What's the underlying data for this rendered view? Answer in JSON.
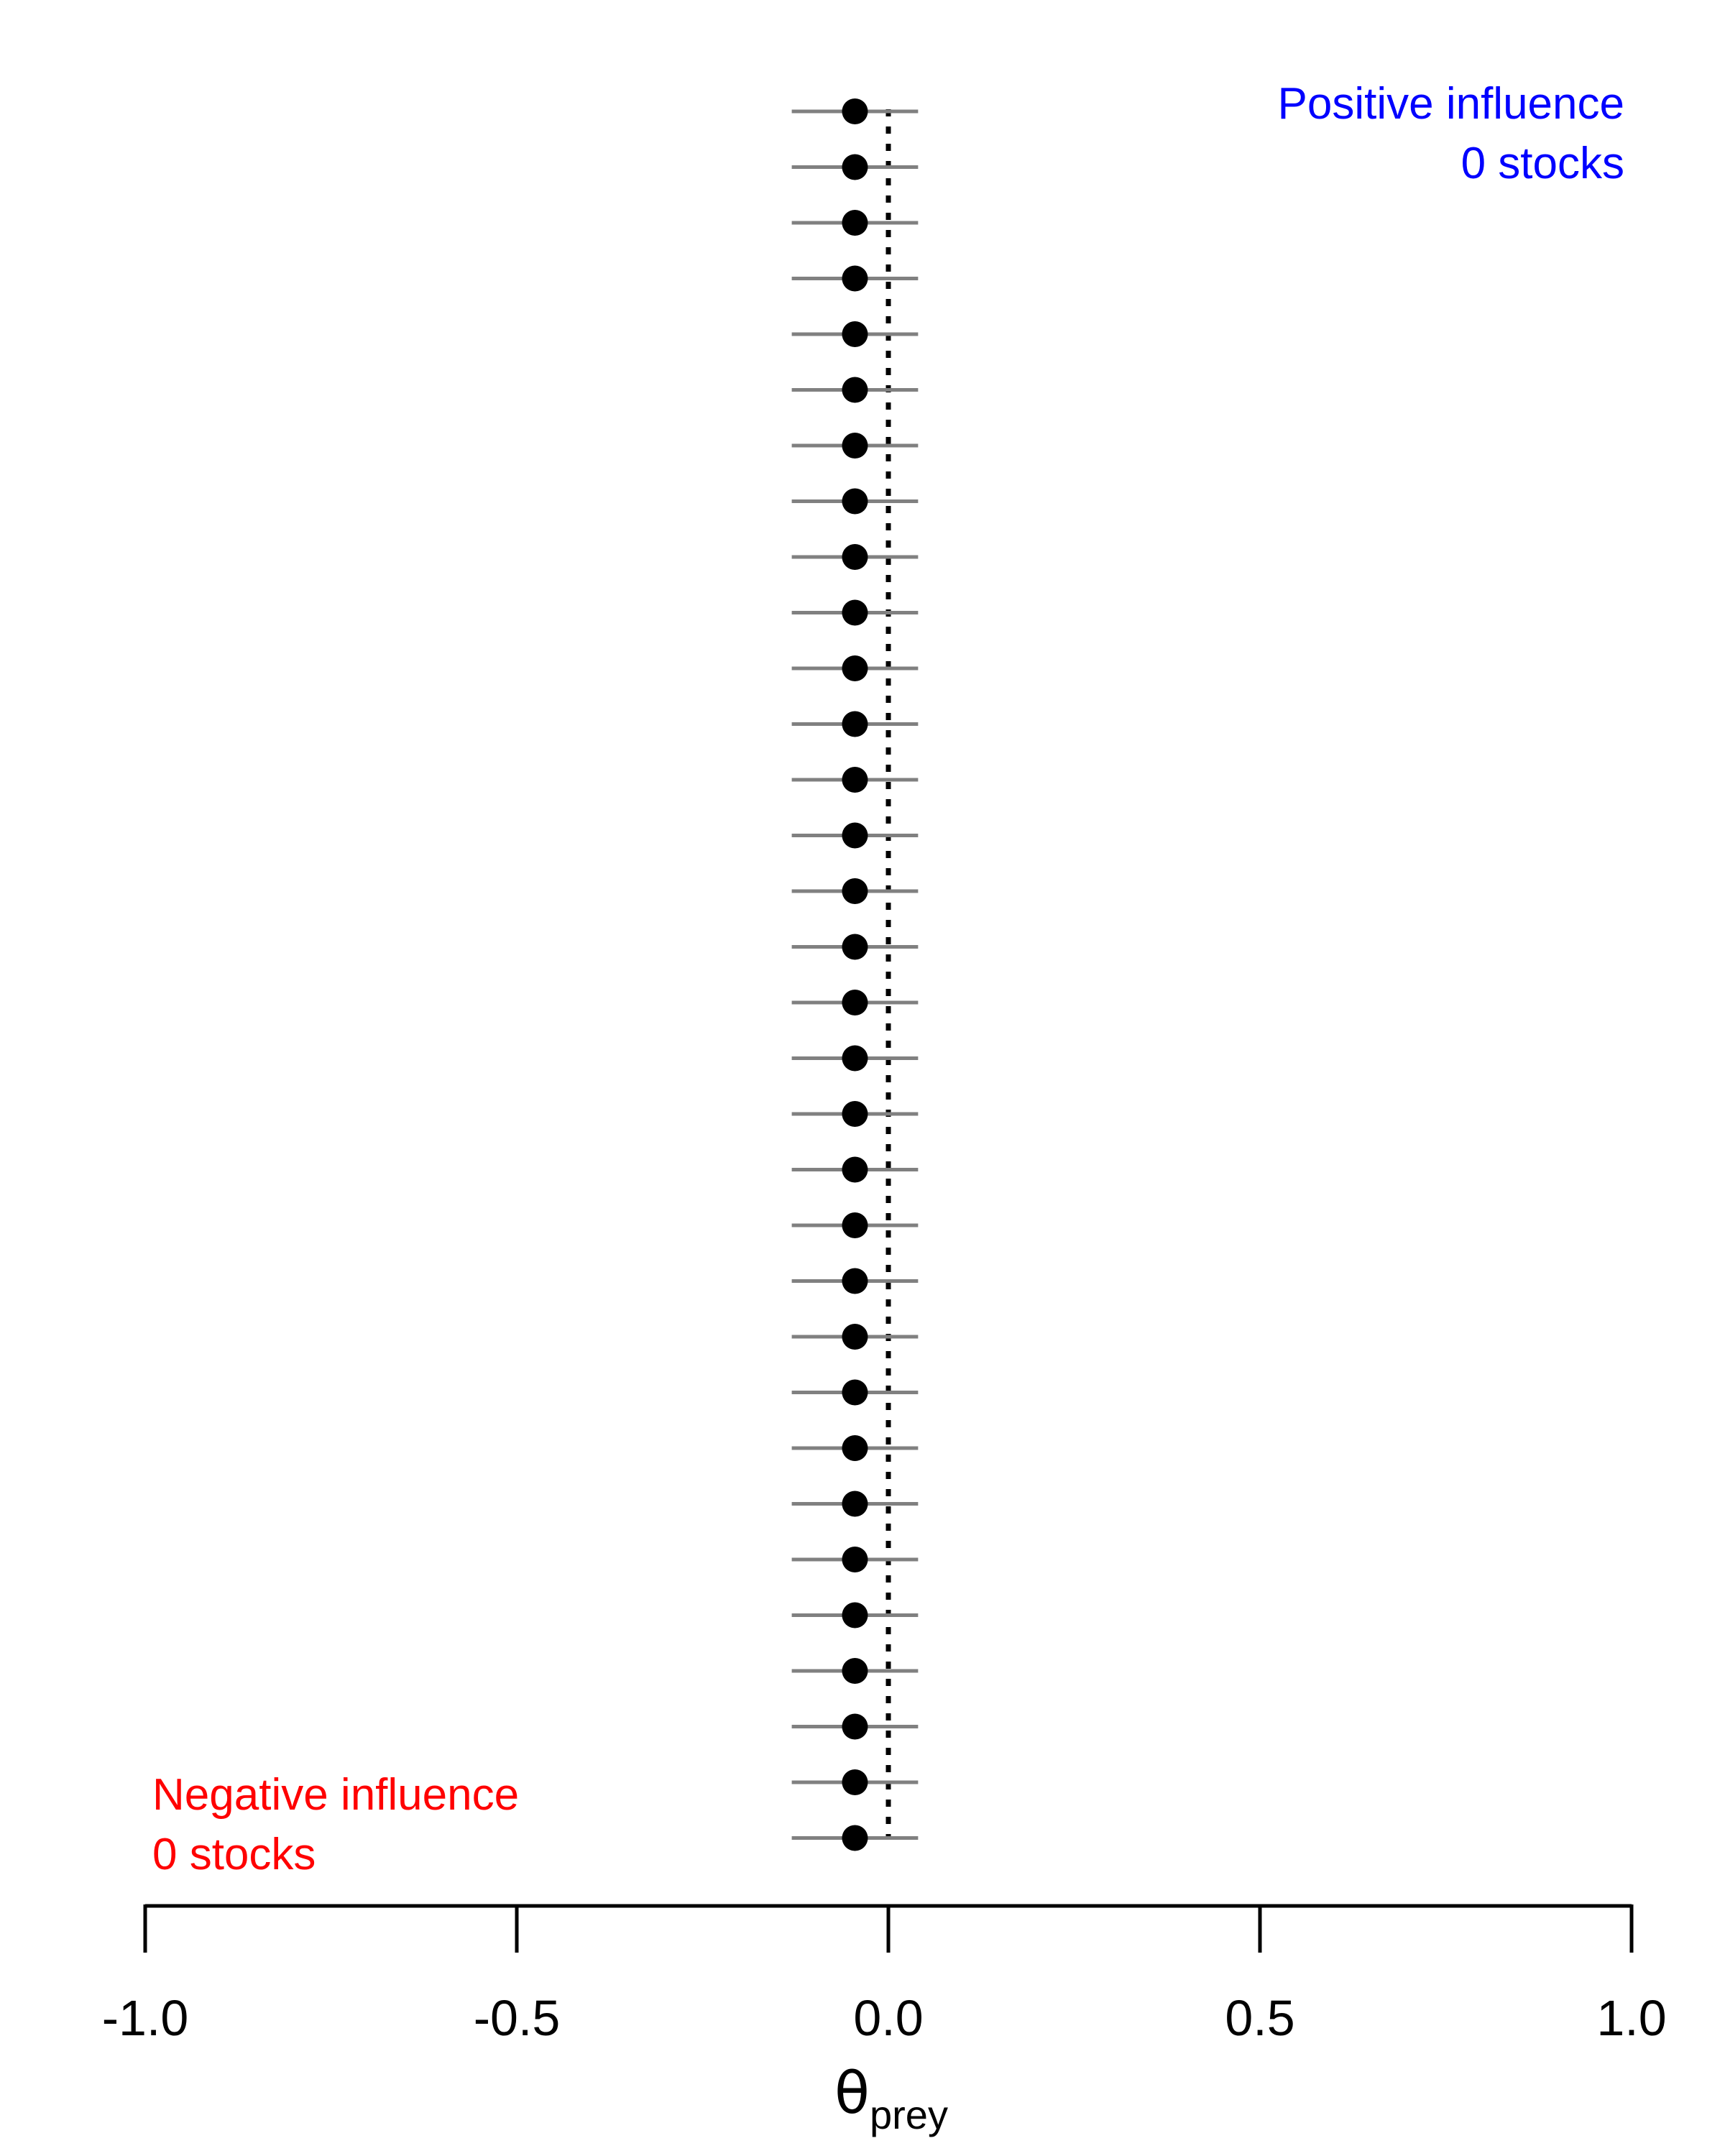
{
  "annotations": {
    "positive": {
      "line1": "Positive influence",
      "line2": "0 stocks",
      "color": "#0000ff"
    },
    "negative": {
      "line1": "Negative influence",
      "line2": "0 stocks",
      "color": "#ff0000"
    }
  },
  "chart_data": {
    "type": "scatter",
    "subtype": "forest-plot (point estimates with horizontal intervals)",
    "xlabel": "θ",
    "xlabel_subscript": "prey",
    "ylabel": "",
    "title": "",
    "xlim": [
      -1.0,
      1.0
    ],
    "xticks": [
      -1.0,
      -0.5,
      0.0,
      0.5,
      1.0
    ],
    "xtick_labels": [
      "-1.0",
      "-0.5",
      "0.0",
      "0.5",
      "1.0"
    ],
    "reference_line": {
      "x": 0.0,
      "style": "dotted",
      "color": "#000000"
    },
    "grid": false,
    "interval_color": "#808080",
    "point_color": "#000000",
    "points": [
      {
        "row": 1,
        "estimate": -0.045,
        "lower": -0.13,
        "upper": 0.04
      },
      {
        "row": 2,
        "estimate": -0.045,
        "lower": -0.13,
        "upper": 0.04
      },
      {
        "row": 3,
        "estimate": -0.045,
        "lower": -0.13,
        "upper": 0.04
      },
      {
        "row": 4,
        "estimate": -0.045,
        "lower": -0.13,
        "upper": 0.04
      },
      {
        "row": 5,
        "estimate": -0.045,
        "lower": -0.13,
        "upper": 0.04
      },
      {
        "row": 6,
        "estimate": -0.045,
        "lower": -0.13,
        "upper": 0.04
      },
      {
        "row": 7,
        "estimate": -0.045,
        "lower": -0.13,
        "upper": 0.04
      },
      {
        "row": 8,
        "estimate": -0.045,
        "lower": -0.13,
        "upper": 0.04
      },
      {
        "row": 9,
        "estimate": -0.045,
        "lower": -0.13,
        "upper": 0.04
      },
      {
        "row": 10,
        "estimate": -0.045,
        "lower": -0.13,
        "upper": 0.04
      },
      {
        "row": 11,
        "estimate": -0.045,
        "lower": -0.13,
        "upper": 0.04
      },
      {
        "row": 12,
        "estimate": -0.045,
        "lower": -0.13,
        "upper": 0.04
      },
      {
        "row": 13,
        "estimate": -0.045,
        "lower": -0.13,
        "upper": 0.04
      },
      {
        "row": 14,
        "estimate": -0.045,
        "lower": -0.13,
        "upper": 0.04
      },
      {
        "row": 15,
        "estimate": -0.045,
        "lower": -0.13,
        "upper": 0.04
      },
      {
        "row": 16,
        "estimate": -0.045,
        "lower": -0.13,
        "upper": 0.04
      },
      {
        "row": 17,
        "estimate": -0.045,
        "lower": -0.13,
        "upper": 0.04
      },
      {
        "row": 18,
        "estimate": -0.045,
        "lower": -0.13,
        "upper": 0.04
      },
      {
        "row": 19,
        "estimate": -0.045,
        "lower": -0.13,
        "upper": 0.04
      },
      {
        "row": 20,
        "estimate": -0.045,
        "lower": -0.13,
        "upper": 0.04
      },
      {
        "row": 21,
        "estimate": -0.045,
        "lower": -0.13,
        "upper": 0.04
      },
      {
        "row": 22,
        "estimate": -0.045,
        "lower": -0.13,
        "upper": 0.04
      },
      {
        "row": 23,
        "estimate": -0.045,
        "lower": -0.13,
        "upper": 0.04
      },
      {
        "row": 24,
        "estimate": -0.045,
        "lower": -0.13,
        "upper": 0.04
      },
      {
        "row": 25,
        "estimate": -0.045,
        "lower": -0.13,
        "upper": 0.04
      },
      {
        "row": 26,
        "estimate": -0.045,
        "lower": -0.13,
        "upper": 0.04
      },
      {
        "row": 27,
        "estimate": -0.045,
        "lower": -0.13,
        "upper": 0.04
      },
      {
        "row": 28,
        "estimate": -0.045,
        "lower": -0.13,
        "upper": 0.04
      },
      {
        "row": 29,
        "estimate": -0.045,
        "lower": -0.13,
        "upper": 0.04
      },
      {
        "row": 30,
        "estimate": -0.045,
        "lower": -0.13,
        "upper": 0.04
      },
      {
        "row": 31,
        "estimate": -0.045,
        "lower": -0.13,
        "upper": 0.04
      },
      {
        "row": 32,
        "estimate": -0.045,
        "lower": -0.13,
        "upper": 0.04
      }
    ]
  }
}
